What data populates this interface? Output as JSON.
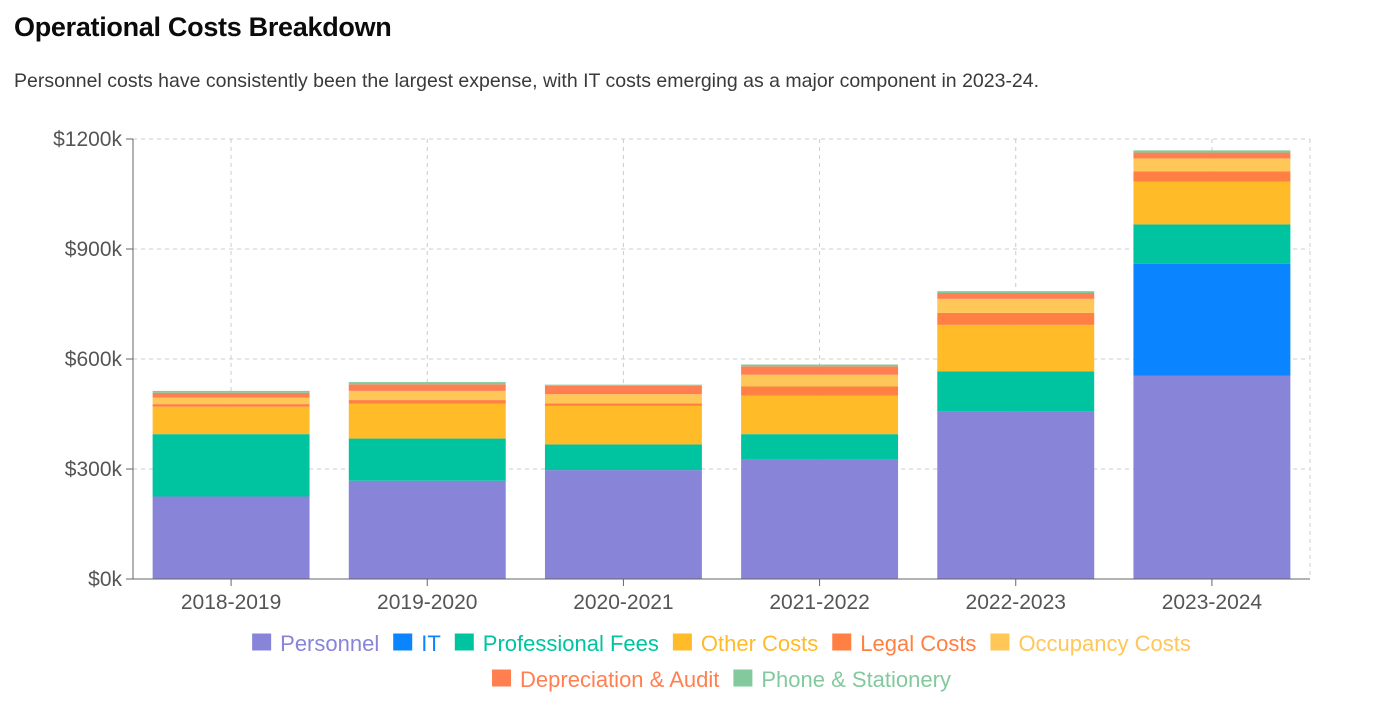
{
  "header": {
    "title": "Operational Costs Breakdown",
    "subtitle": "Personnel costs have consistently been the largest expense, with IT costs emerging as a major component in 2023-24."
  },
  "chart_data": {
    "type": "bar",
    "stacked": true,
    "categories": [
      "2018-2019",
      "2019-2020",
      "2020-2021",
      "2021-2022",
      "2022-2023",
      "2023-2024"
    ],
    "y_ticks": [
      "$0k",
      "$300k",
      "$600k",
      "$900k",
      "$1200k"
    ],
    "y_tick_values": [
      0,
      300,
      600,
      900,
      1200
    ],
    "ylim": [
      0,
      1200
    ],
    "unit": "k",
    "grid": true,
    "legend_position": "bottom",
    "series": [
      {
        "name": "Personnel",
        "color": "#8884d8",
        "values": [
          225,
          268,
          297,
          325,
          458,
          555
        ]
      },
      {
        "name": "IT",
        "color": "#0a84ff",
        "values": [
          0,
          0,
          0,
          0,
          0,
          305
        ]
      },
      {
        "name": "Professional Fees",
        "color": "#00c49f",
        "values": [
          170,
          115,
          70,
          70,
          108,
          107
        ]
      },
      {
        "name": "Other Costs",
        "color": "#ffbb28",
        "values": [
          75,
          95,
          105,
          105,
          127,
          117
        ]
      },
      {
        "name": "Legal Costs",
        "color": "#ff8042",
        "values": [
          7,
          10,
          7,
          25,
          33,
          28
        ]
      },
      {
        "name": "Occupancy Costs",
        "color": "#ffc658",
        "values": [
          18,
          25,
          25,
          32,
          38,
          35
        ]
      },
      {
        "name": "Depreciation & Audit",
        "color": "#ff7f50",
        "values": [
          13,
          18,
          23,
          23,
          16,
          16
        ]
      },
      {
        "name": "Phone & Stationery",
        "color": "#82ca9d",
        "values": [
          5,
          6,
          3,
          5,
          5,
          6
        ]
      }
    ]
  }
}
